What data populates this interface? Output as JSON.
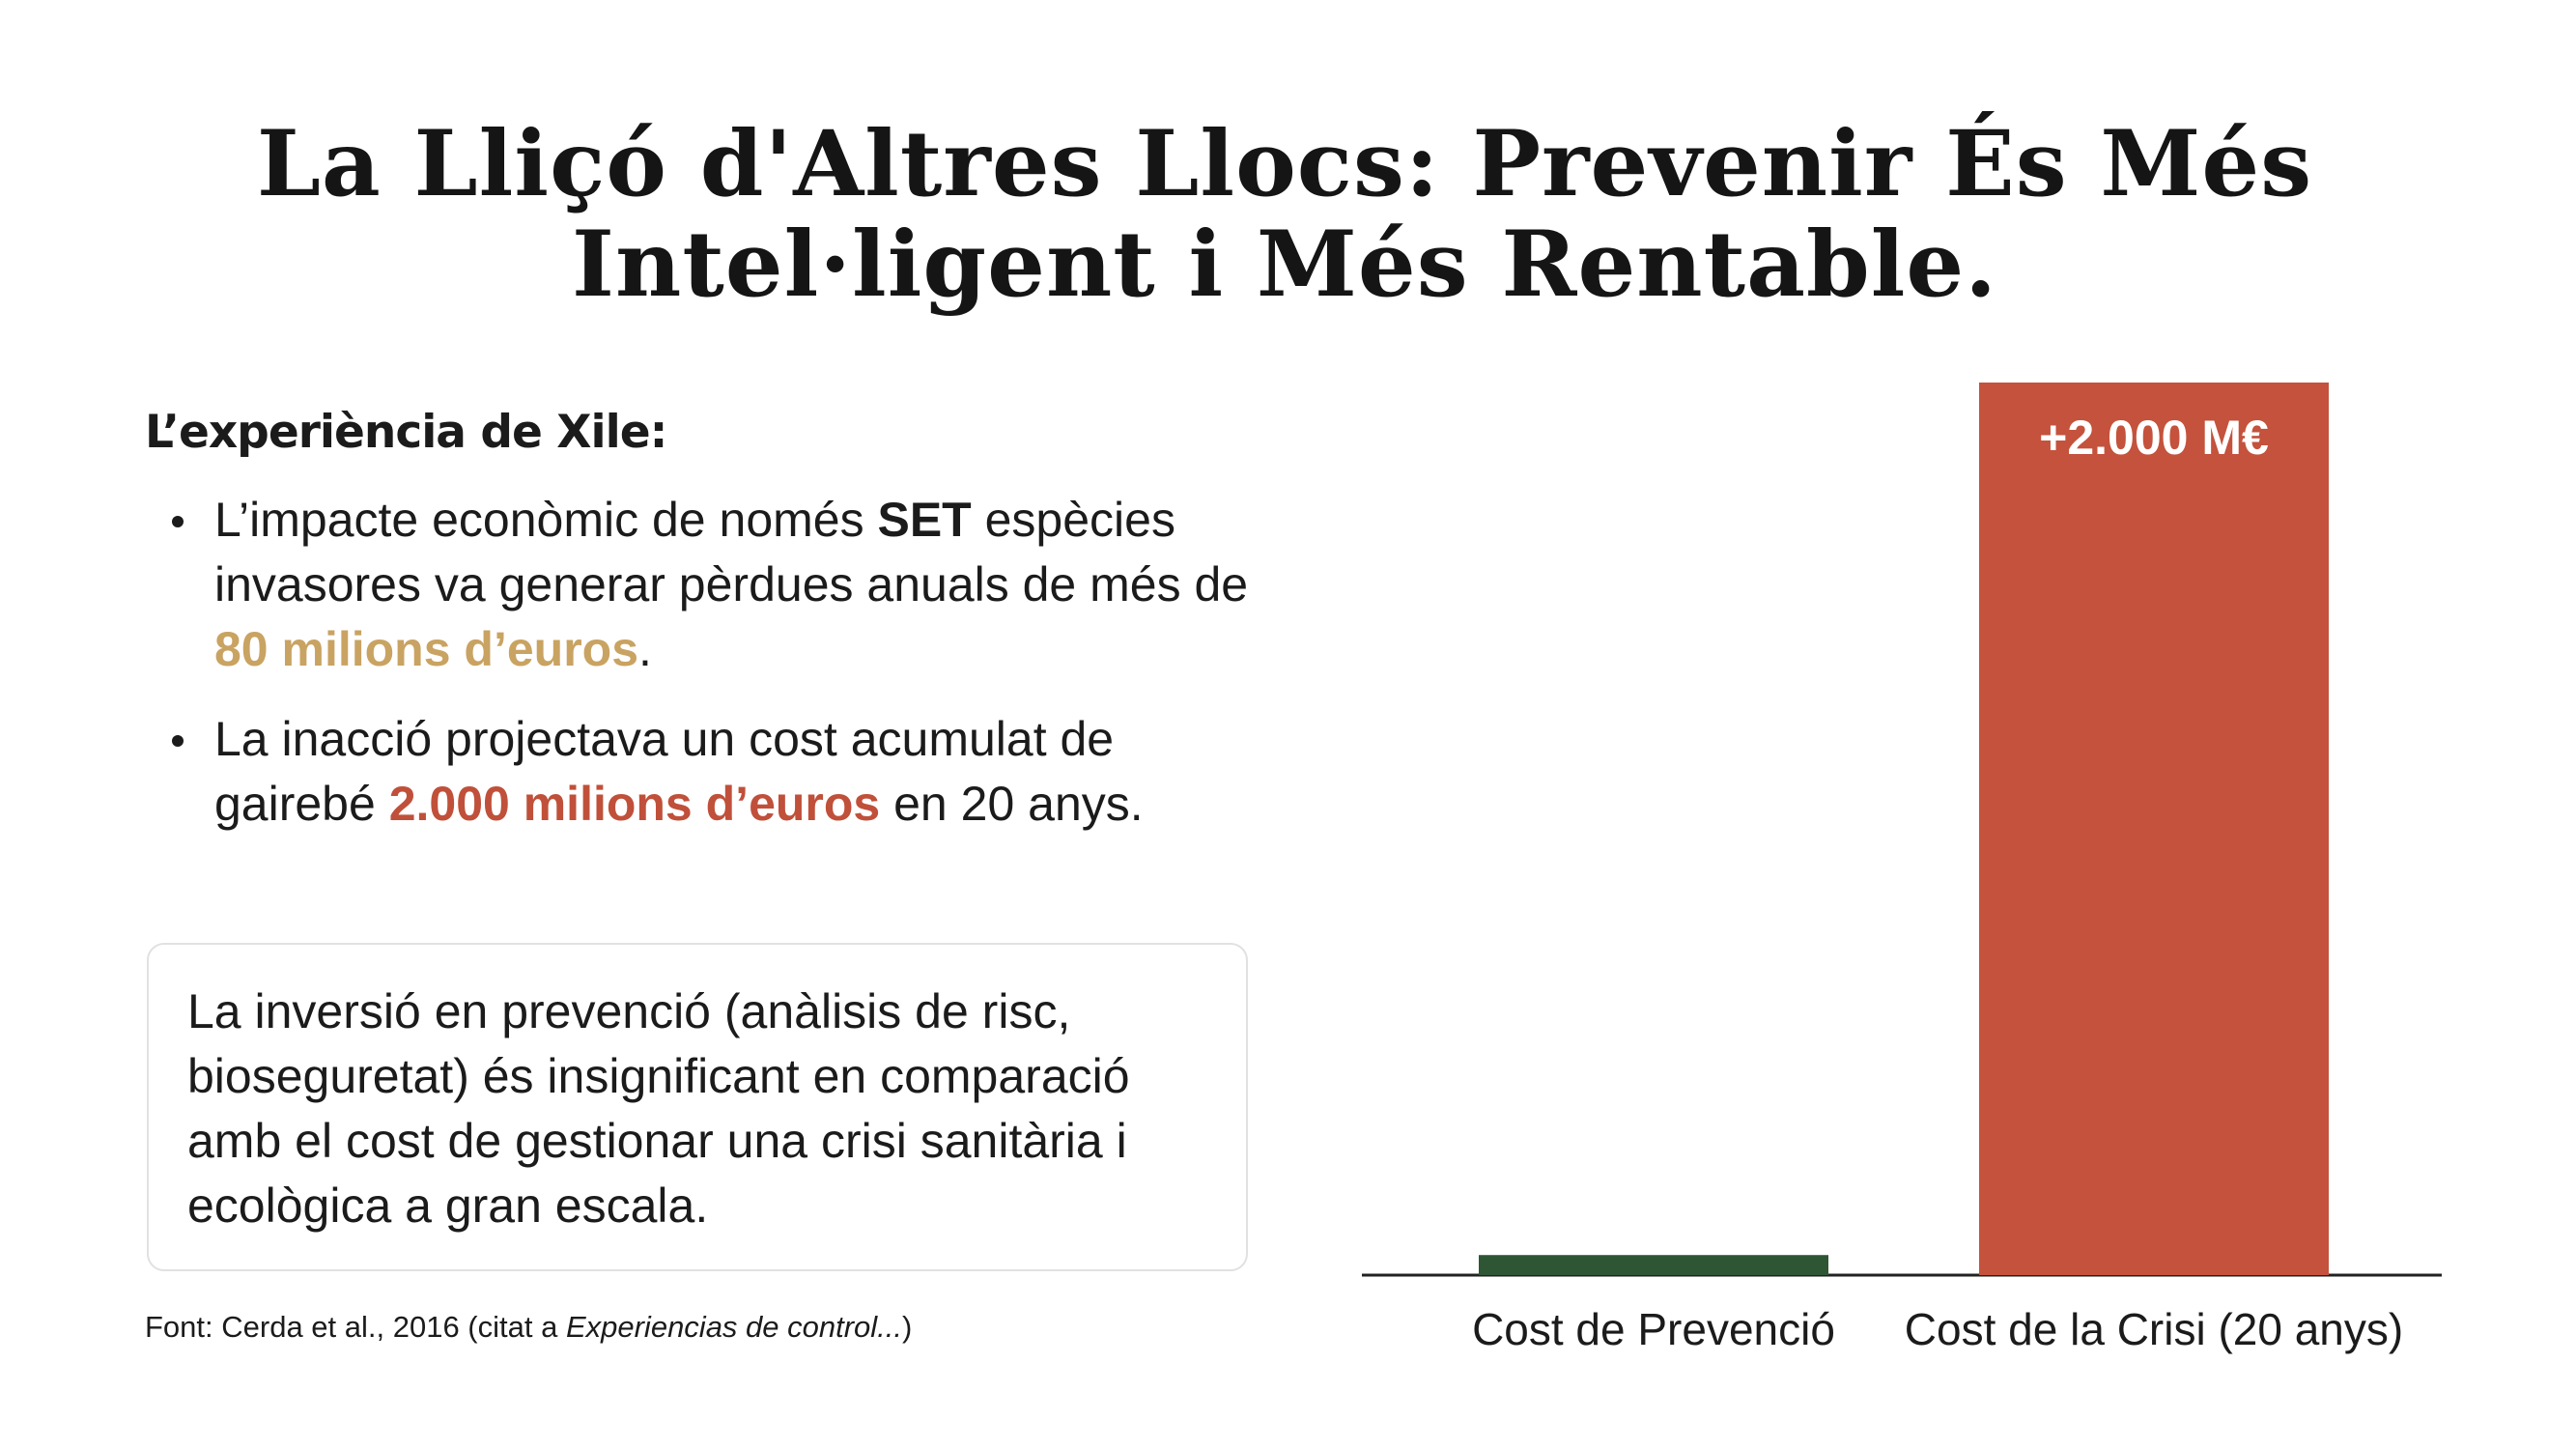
{
  "title": "La Lliçó d'Altres Llocs: Prevenir És Més Intel·ligent i Més Rentable.",
  "subhead": "L’experiència de Xile:",
  "bullets": [
    {
      "p1": "L’impacte econòmic de només ",
      "strong": "SET",
      "p2": " espècies invasores va generar pèrdues anuals de més de ",
      "highlight": "80 milions d’euros",
      "p3": "."
    },
    {
      "p1": "La inacció projectava un cost acumulat de gairebé ",
      "highlight": "2.000 milions d’euros",
      "p2": " en 20 anys."
    }
  ],
  "note": "La inversió en prevenció (anàlisis de risc, bioseguretat) és insignificant en comparació amb el cost de gestionar una crisi sanitària i ecològica a gran escala.",
  "source": {
    "prefix": "Font: Cerda et al., 2016 (citat a ",
    "italic": "Experiencias de control...",
    "suffix": ")"
  },
  "colors": {
    "prevention": "#2e5634",
    "crisis": "#c4523c",
    "gold_highlight": "#c9a362",
    "rust_highlight": "#c0503a"
  },
  "chart_data": {
    "type": "bar",
    "categories": [
      "Cost de Prevenció",
      "Cost de la Crisi (20 anys)"
    ],
    "values": [
      45,
      2000
    ],
    "data_labels": [
      "",
      "+2.000 M€"
    ],
    "ylim": [
      0,
      2000
    ],
    "grid": false,
    "legend": "none",
    "axis_labels_visible": false
  }
}
